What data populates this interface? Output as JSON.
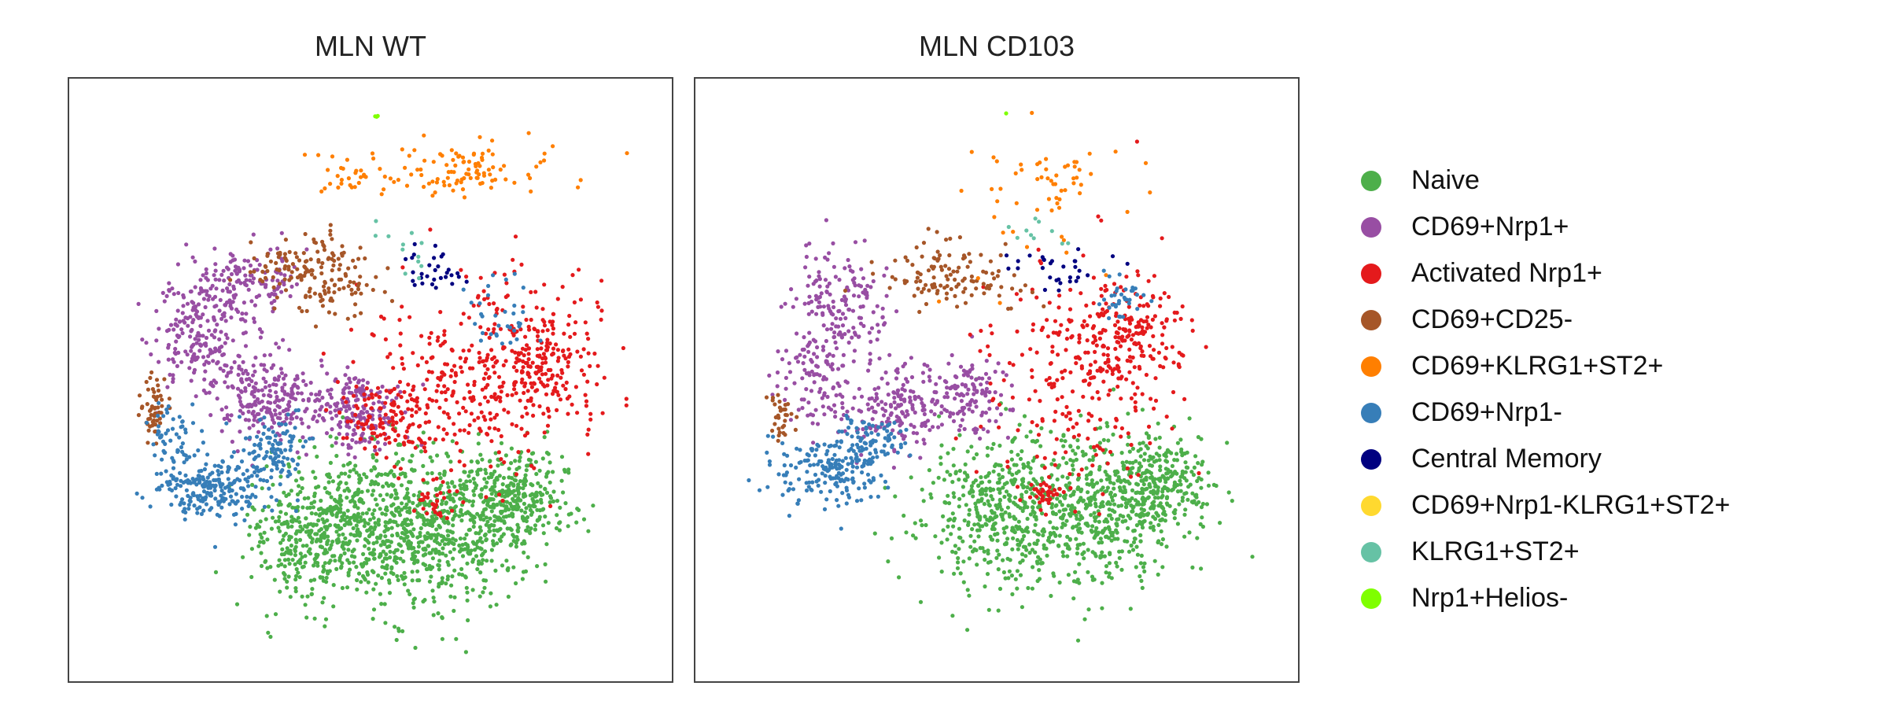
{
  "chart_data": [
    {
      "type": "scatter",
      "title": "MLN WT",
      "xlabel": "",
      "ylabel": "",
      "grid": false,
      "axes_ticks": false,
      "xlim": [
        0,
        100
      ],
      "ylim": [
        0,
        100
      ],
      "clusters": [
        {
          "name": "Naive",
          "n": 1500,
          "blobs": [
            [
              50,
              26,
              8.5,
              6.5,
              4
            ],
            [
              64,
              25,
              7,
              6,
              3
            ],
            [
              74,
              31,
              5,
              4,
              2
            ],
            [
              40,
              24,
              5,
              5,
              1.5
            ]
          ]
        },
        {
          "name": "CD69+Nrp1+",
          "n": 750,
          "blobs": [
            [
              22,
              58,
              4,
              5,
              2
            ],
            [
              33,
              47,
              4.5,
              3.5,
              2
            ],
            [
              48,
              45,
              3.5,
              3,
              1.5
            ],
            [
              30,
              66,
              4,
              3.5,
              1
            ]
          ]
        },
        {
          "name": "Activated Nrp1+",
          "n": 640,
          "blobs": [
            [
              66,
              50,
              9,
              8,
              3
            ],
            [
              79,
              53,
              5,
              6,
              2
            ],
            [
              53,
              44,
              4,
              3,
              1
            ],
            [
              61,
              30,
              1.5,
              1.5,
              0.3
            ]
          ]
        },
        {
          "name": "CD69+CD25-",
          "n": 220,
          "blobs": [
            [
              38,
              69,
              5,
              2.5,
              2
            ],
            [
              45,
              65,
              4,
              3,
              1
            ],
            [
              14,
              45,
              1.2,
              2.5,
              1
            ]
          ]
        },
        {
          "name": "CD69+KLRG1+ST2+",
          "n": 130,
          "blobs": [
            [
              62,
              84,
              10,
              2.5,
              2
            ],
            [
              66,
              85,
              2.5,
              1.8,
              1
            ],
            [
              47,
              85,
              4,
              1.5,
              0.5
            ]
          ]
        },
        {
          "name": "CD69+Nrp1-",
          "n": 420,
          "blobs": [
            [
              24,
              32,
              5,
              2.5,
              2
            ],
            [
              34,
              38,
              3,
              3,
              1
            ],
            [
              17,
              40,
              2.5,
              2.5,
              0.5
            ],
            [
              72,
              61,
              2.5,
              3,
              0.3
            ]
          ]
        },
        {
          "name": "Central Memory",
          "n": 30,
          "blobs": [
            [
              60,
              68,
              3,
              2,
              1
            ]
          ]
        },
        {
          "name": "CD69+Nrp1-KLRG1+ST2+",
          "n": 0,
          "blobs": []
        },
        {
          "name": "KLRG1+ST2+",
          "n": 12,
          "blobs": [
            [
              57,
              72,
              4,
              3,
              1
            ]
          ]
        },
        {
          "name": "Nrp1+Helios-",
          "n": 3,
          "blobs": [
            [
              51,
              94,
              0.4,
              0.3,
              1
            ]
          ]
        }
      ]
    },
    {
      "type": "scatter",
      "title": "MLN CD103",
      "xlabel": "",
      "ylabel": "",
      "grid": false,
      "axes_ticks": false,
      "xlim": [
        0,
        100
      ],
      "ylim": [
        0,
        100
      ],
      "clusters": [
        {
          "name": "Naive",
          "n": 1150,
          "blobs": [
            [
              56,
              28,
              9,
              7,
              4
            ],
            [
              70,
              29,
              7,
              6,
              3
            ],
            [
              77,
              33,
              4,
              4,
              1.5
            ],
            [
              47,
              30,
              4,
              4,
              1
            ]
          ]
        },
        {
          "name": "CD69+Nrp1+",
          "n": 560,
          "blobs": [
            [
              24,
              62,
              4,
              5,
              2
            ],
            [
              33,
              45,
              4.5,
              3.5,
              2
            ],
            [
              45,
              47,
              3.5,
              3,
              1.5
            ],
            [
              20,
              50,
              3,
              3,
              1
            ]
          ]
        },
        {
          "name": "Activated Nrp1+",
          "n": 440,
          "blobs": [
            [
              63,
              52,
              8,
              9,
              3
            ],
            [
              72,
              58,
              4,
              5,
              2
            ],
            [
              58,
              32,
              2,
              1.5,
              0.5
            ]
          ]
        },
        {
          "name": "CD69+CD25-",
          "n": 150,
          "blobs": [
            [
              39,
              68,
              4.5,
              3,
              2
            ],
            [
              48,
              66,
              4,
              2.5,
              1
            ],
            [
              14,
              44,
              1,
              1.8,
              0.8
            ]
          ]
        },
        {
          "name": "CD69+KLRG1+ST2+",
          "n": 60,
          "blobs": [
            [
              58,
              80,
              8,
              5,
              2
            ],
            [
              60,
              84,
              2,
              2,
              1
            ]
          ]
        },
        {
          "name": "CD69+Nrp1-",
          "n": 290,
          "blobs": [
            [
              22,
              35,
              5,
              3,
              2
            ],
            [
              29,
              40,
              3,
              2.5,
              1
            ],
            [
              71,
              64,
              2,
              2,
              0.4
            ]
          ]
        },
        {
          "name": "Central Memory",
          "n": 30,
          "blobs": [
            [
              60,
              68,
              3.5,
              2,
              1
            ]
          ]
        },
        {
          "name": "CD69+Nrp1-KLRG1+ST2+",
          "n": 0,
          "blobs": []
        },
        {
          "name": "KLRG1+ST2+",
          "n": 10,
          "blobs": [
            [
              56,
              74,
              2,
              1.5,
              1
            ]
          ]
        },
        {
          "name": "Nrp1+Helios-",
          "n": 1,
          "blobs": [
            [
              51,
              94,
              0.3,
              0.3,
              1
            ]
          ]
        }
      ]
    }
  ],
  "panels": [
    {
      "title": "MLN WT"
    },
    {
      "title": "MLN CD103"
    }
  ],
  "legend": {
    "placement": "right",
    "items": [
      {
        "label": "Naive",
        "color": "#4daf4a"
      },
      {
        "label": "CD69+Nrp1+",
        "color": "#984ea3"
      },
      {
        "label": "Activated Nrp1+",
        "color": "#e41a1c"
      },
      {
        "label": "CD69+CD25-",
        "color": "#a65628"
      },
      {
        "label": "CD69+KLRG1+ST2+",
        "color": "#ff7f00"
      },
      {
        "label": "CD69+Nrp1-",
        "color": "#377eb8"
      },
      {
        "label": "Central Memory",
        "color": "#000080"
      },
      {
        "label": "CD69+Nrp1-KLRG1+ST2+",
        "color": "#ffd92f"
      },
      {
        "label": "KLRG1+ST2+",
        "color": "#66c2a5"
      },
      {
        "label": "Nrp1+Helios-",
        "color": "#7fff00"
      }
    ]
  }
}
